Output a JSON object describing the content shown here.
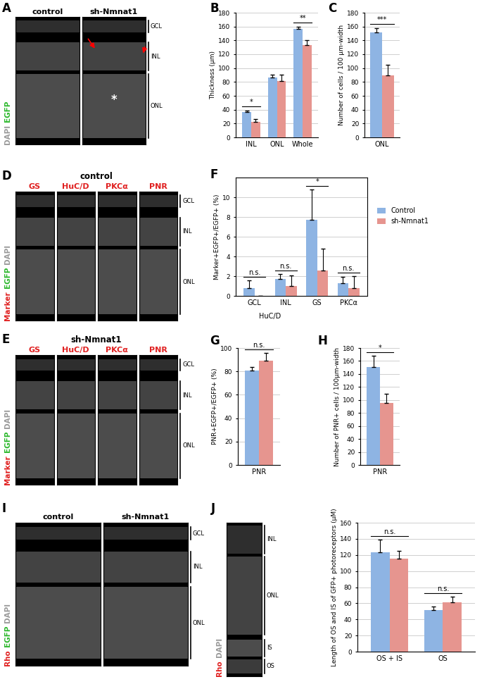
{
  "image_panels": [
    {
      "letter": "A",
      "columns": [
        {
          "label": "control",
          "color": "#000000"
        },
        {
          "label": "sh-Nmnat1",
          "color": "#000000",
          "mark": "*"
        }
      ],
      "stain": [
        {
          "text": "DAPI",
          "color": "#9a9a9a"
        },
        {
          "text": "EGFP",
          "color": "#2db82d"
        }
      ],
      "layers": [
        "GCL",
        "INL",
        "ONL"
      ]
    },
    {
      "letter": "D",
      "row_label": "control",
      "columns": [
        {
          "label": "GS",
          "color": "#e02020"
        },
        {
          "label": "HuC/D",
          "color": "#e02020"
        },
        {
          "label": "PKCα",
          "color": "#e02020"
        },
        {
          "label": "PNR",
          "color": "#e02020"
        }
      ],
      "stain": [
        {
          "text": "Marker",
          "color": "#e02020"
        },
        {
          "text": "EGFP",
          "color": "#2db82d"
        },
        {
          "text": "DAPI",
          "color": "#9a9a9a"
        }
      ],
      "layers": [
        "GCL",
        "INL",
        "ONL"
      ]
    },
    {
      "letter": "E",
      "row_label": "sh-Nmnat1",
      "columns": [
        {
          "label": "GS",
          "color": "#e02020"
        },
        {
          "label": "HuC/D",
          "color": "#e02020"
        },
        {
          "label": "PKCα",
          "color": "#e02020"
        },
        {
          "label": "PNR",
          "color": "#e02020"
        }
      ],
      "stain": [
        {
          "text": "Marker",
          "color": "#e02020"
        },
        {
          "text": "EGFP",
          "color": "#2db82d"
        },
        {
          "text": "DAPI",
          "color": "#9a9a9a"
        }
      ],
      "layers": [
        "GCL",
        "INL",
        "ONL"
      ]
    },
    {
      "letter": "I",
      "columns": [
        {
          "label": "control",
          "color": "#000000"
        },
        {
          "label": "sh-Nmnat1",
          "color": "#000000"
        }
      ],
      "stain": [
        {
          "text": "Rho",
          "color": "#e02020"
        },
        {
          "text": "EGFP",
          "color": "#2db82d"
        },
        {
          "text": "DAPI",
          "color": "#9a9a9a"
        }
      ],
      "layers": [
        "GCL",
        "INL",
        "ONL"
      ]
    },
    {
      "letter": "J",
      "columns": [],
      "stain": [
        {
          "text": "Rho",
          "color": "#e02020"
        },
        {
          "text": "DAPI",
          "color": "#9a9a9a"
        }
      ],
      "layers": [
        "INL",
        "ONL",
        "IS",
        "OS"
      ]
    }
  ],
  "chart_data": [
    {
      "type": "bar",
      "panel": "B",
      "y_label": "Thickness (μm)",
      "categories": [
        "INL",
        "ONL",
        "Whole"
      ],
      "series": [
        {
          "color": "#8EB4E3",
          "values": [
            37,
            86,
            157
          ],
          "errors": [
            2,
            5,
            3
          ]
        },
        {
          "color": "#E6958F",
          "values": [
            22,
            81,
            133
          ],
          "errors": [
            4,
            10,
            7
          ]
        }
      ],
      "annotations": [
        "*",
        null,
        "**"
      ],
      "ylim": [
        0,
        180
      ],
      "yticks": [
        0,
        20,
        40,
        60,
        80,
        100,
        120,
        140,
        160,
        180
      ],
      "grid": true
    },
    {
      "type": "bar",
      "panel": "C",
      "y_label": "Number of cells / 100 μm-width",
      "categories": [
        "ONL"
      ],
      "series": [
        {
          "color": "#8EB4E3",
          "values": [
            152
          ],
          "errors": [
            6
          ]
        },
        {
          "color": "#E6958F",
          "values": [
            89
          ],
          "errors": [
            16
          ]
        }
      ],
      "annotations": [
        "***"
      ],
      "ylim": [
        0,
        180
      ],
      "yticks": [
        0,
        20,
        40,
        60,
        80,
        100,
        120,
        140,
        160,
        180
      ],
      "grid": true
    },
    {
      "type": "bar",
      "panel": "F",
      "y_label": "Marker+EGFP+/EGFP+ (%)",
      "categories": [
        "GCL",
        "INL",
        "GS",
        "PKCα"
      ],
      "category_groups": [
        {
          "label": "HuC/D",
          "members": [
            "GCL",
            "INL"
          ]
        }
      ],
      "series": [
        {
          "name": "Control",
          "color": "#8EB4E3",
          "values": [
            0.8,
            1.7,
            7.7,
            1.3
          ],
          "errors": [
            0.8,
            0.5,
            3.1,
            0.6
          ]
        },
        {
          "name": "sh-Nmnat1",
          "color": "#E6958F",
          "values": [
            0,
            1.0,
            2.6,
            0.8
          ],
          "errors": [
            0,
            1.1,
            2.2,
            1.2
          ]
        }
      ],
      "annotations": [
        "n.s.",
        "n.s.",
        "*",
        "n.s."
      ],
      "legend": "upper left",
      "ylim": [
        0,
        12
      ],
      "yticks": [
        0,
        2,
        4,
        6,
        8,
        10
      ],
      "grid": true
    },
    {
      "type": "bar",
      "panel": "G",
      "y_label": "PNR+EGFP+/EGFP+ (%)",
      "categories": [
        "PNR"
      ],
      "series": [
        {
          "color": "#8EB4E3",
          "values": [
            81
          ],
          "errors": [
            3
          ]
        },
        {
          "color": "#E6958F",
          "values": [
            89
          ],
          "errors": [
            7
          ]
        }
      ],
      "annotations": [
        "n.s."
      ],
      "ylim": [
        0,
        100
      ],
      "yticks": [
        0,
        20,
        40,
        60,
        80,
        100
      ],
      "grid": true
    },
    {
      "type": "bar",
      "panel": "H",
      "y_label": "Number of PNR+ cells / 100μm-width",
      "categories": [
        "PNR"
      ],
      "series": [
        {
          "color": "#8EB4E3",
          "values": [
            151
          ],
          "errors": [
            17
          ]
        },
        {
          "color": "#E6958F",
          "values": [
            95
          ],
          "errors": [
            14
          ]
        }
      ],
      "annotations": [
        "*"
      ],
      "ylim": [
        0,
        180
      ],
      "yticks": [
        0,
        20,
        40,
        60,
        80,
        100,
        120,
        140,
        160,
        180
      ],
      "grid": true
    },
    {
      "type": "bar",
      "y_label": "Length of OS and IS of GFP+ photoreceptors (μM)",
      "categories": [
        "OS + IS",
        "OS"
      ],
      "series": [
        {
          "color": "#8EB4E3",
          "values": [
            123,
            52
          ],
          "errors": [
            16,
            4
          ]
        },
        {
          "color": "#E6958F",
          "values": [
            115,
            61
          ],
          "errors": [
            10,
            7
          ]
        }
      ],
      "annotations": [
        "n.s.",
        "n.s."
      ],
      "ylim": [
        0,
        160
      ],
      "yticks": [
        0,
        20,
        40,
        60,
        80,
        100,
        120,
        140,
        160
      ],
      "grid": true
    }
  ]
}
